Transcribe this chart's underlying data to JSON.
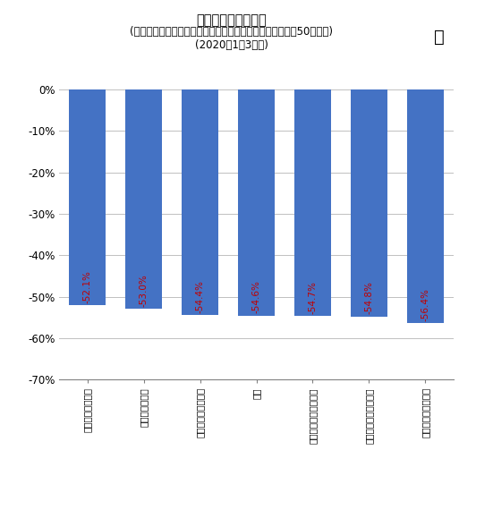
{
  "title_line1": "月あたりの支出金額",
  "title_line2": "(二人以上世帯、品目分類、小区分、前年同期比でマイナス50％以下)",
  "title_line3": "(2020年1～3月期)",
  "categories": [
    "国内パック旅行費",
    "専用機器修理代",
    "幼児服・乳幼児用品",
    "園芸",
    "航空運賃・船舶等運賃",
    "パック旅行費（国外）",
    "植木・生花・種子等"
  ],
  "values": [
    -52.1,
    -53.0,
    -54.4,
    -54.6,
    -54.7,
    -54.8,
    -56.4
  ],
  "bar_color": "#4472C4",
  "value_color": "#C00000",
  "ylim": [
    -70,
    0
  ],
  "yticks": [
    0,
    -10,
    -20,
    -30,
    -40,
    -50,
    -60,
    -70
  ],
  "ytick_labels": [
    "0%",
    "-10%",
    "-20%",
    "-30%",
    "-40%",
    "-50%",
    "-60%",
    "-70%"
  ],
  "background_color": "#FFFFFF",
  "grid_color": "#C0C0C0",
  "value_labels": [
    "-52.1%",
    "-53.0%",
    "-54.4%",
    "-54.6%",
    "-54.7%",
    "-54.8%",
    "-56.4%"
  ]
}
